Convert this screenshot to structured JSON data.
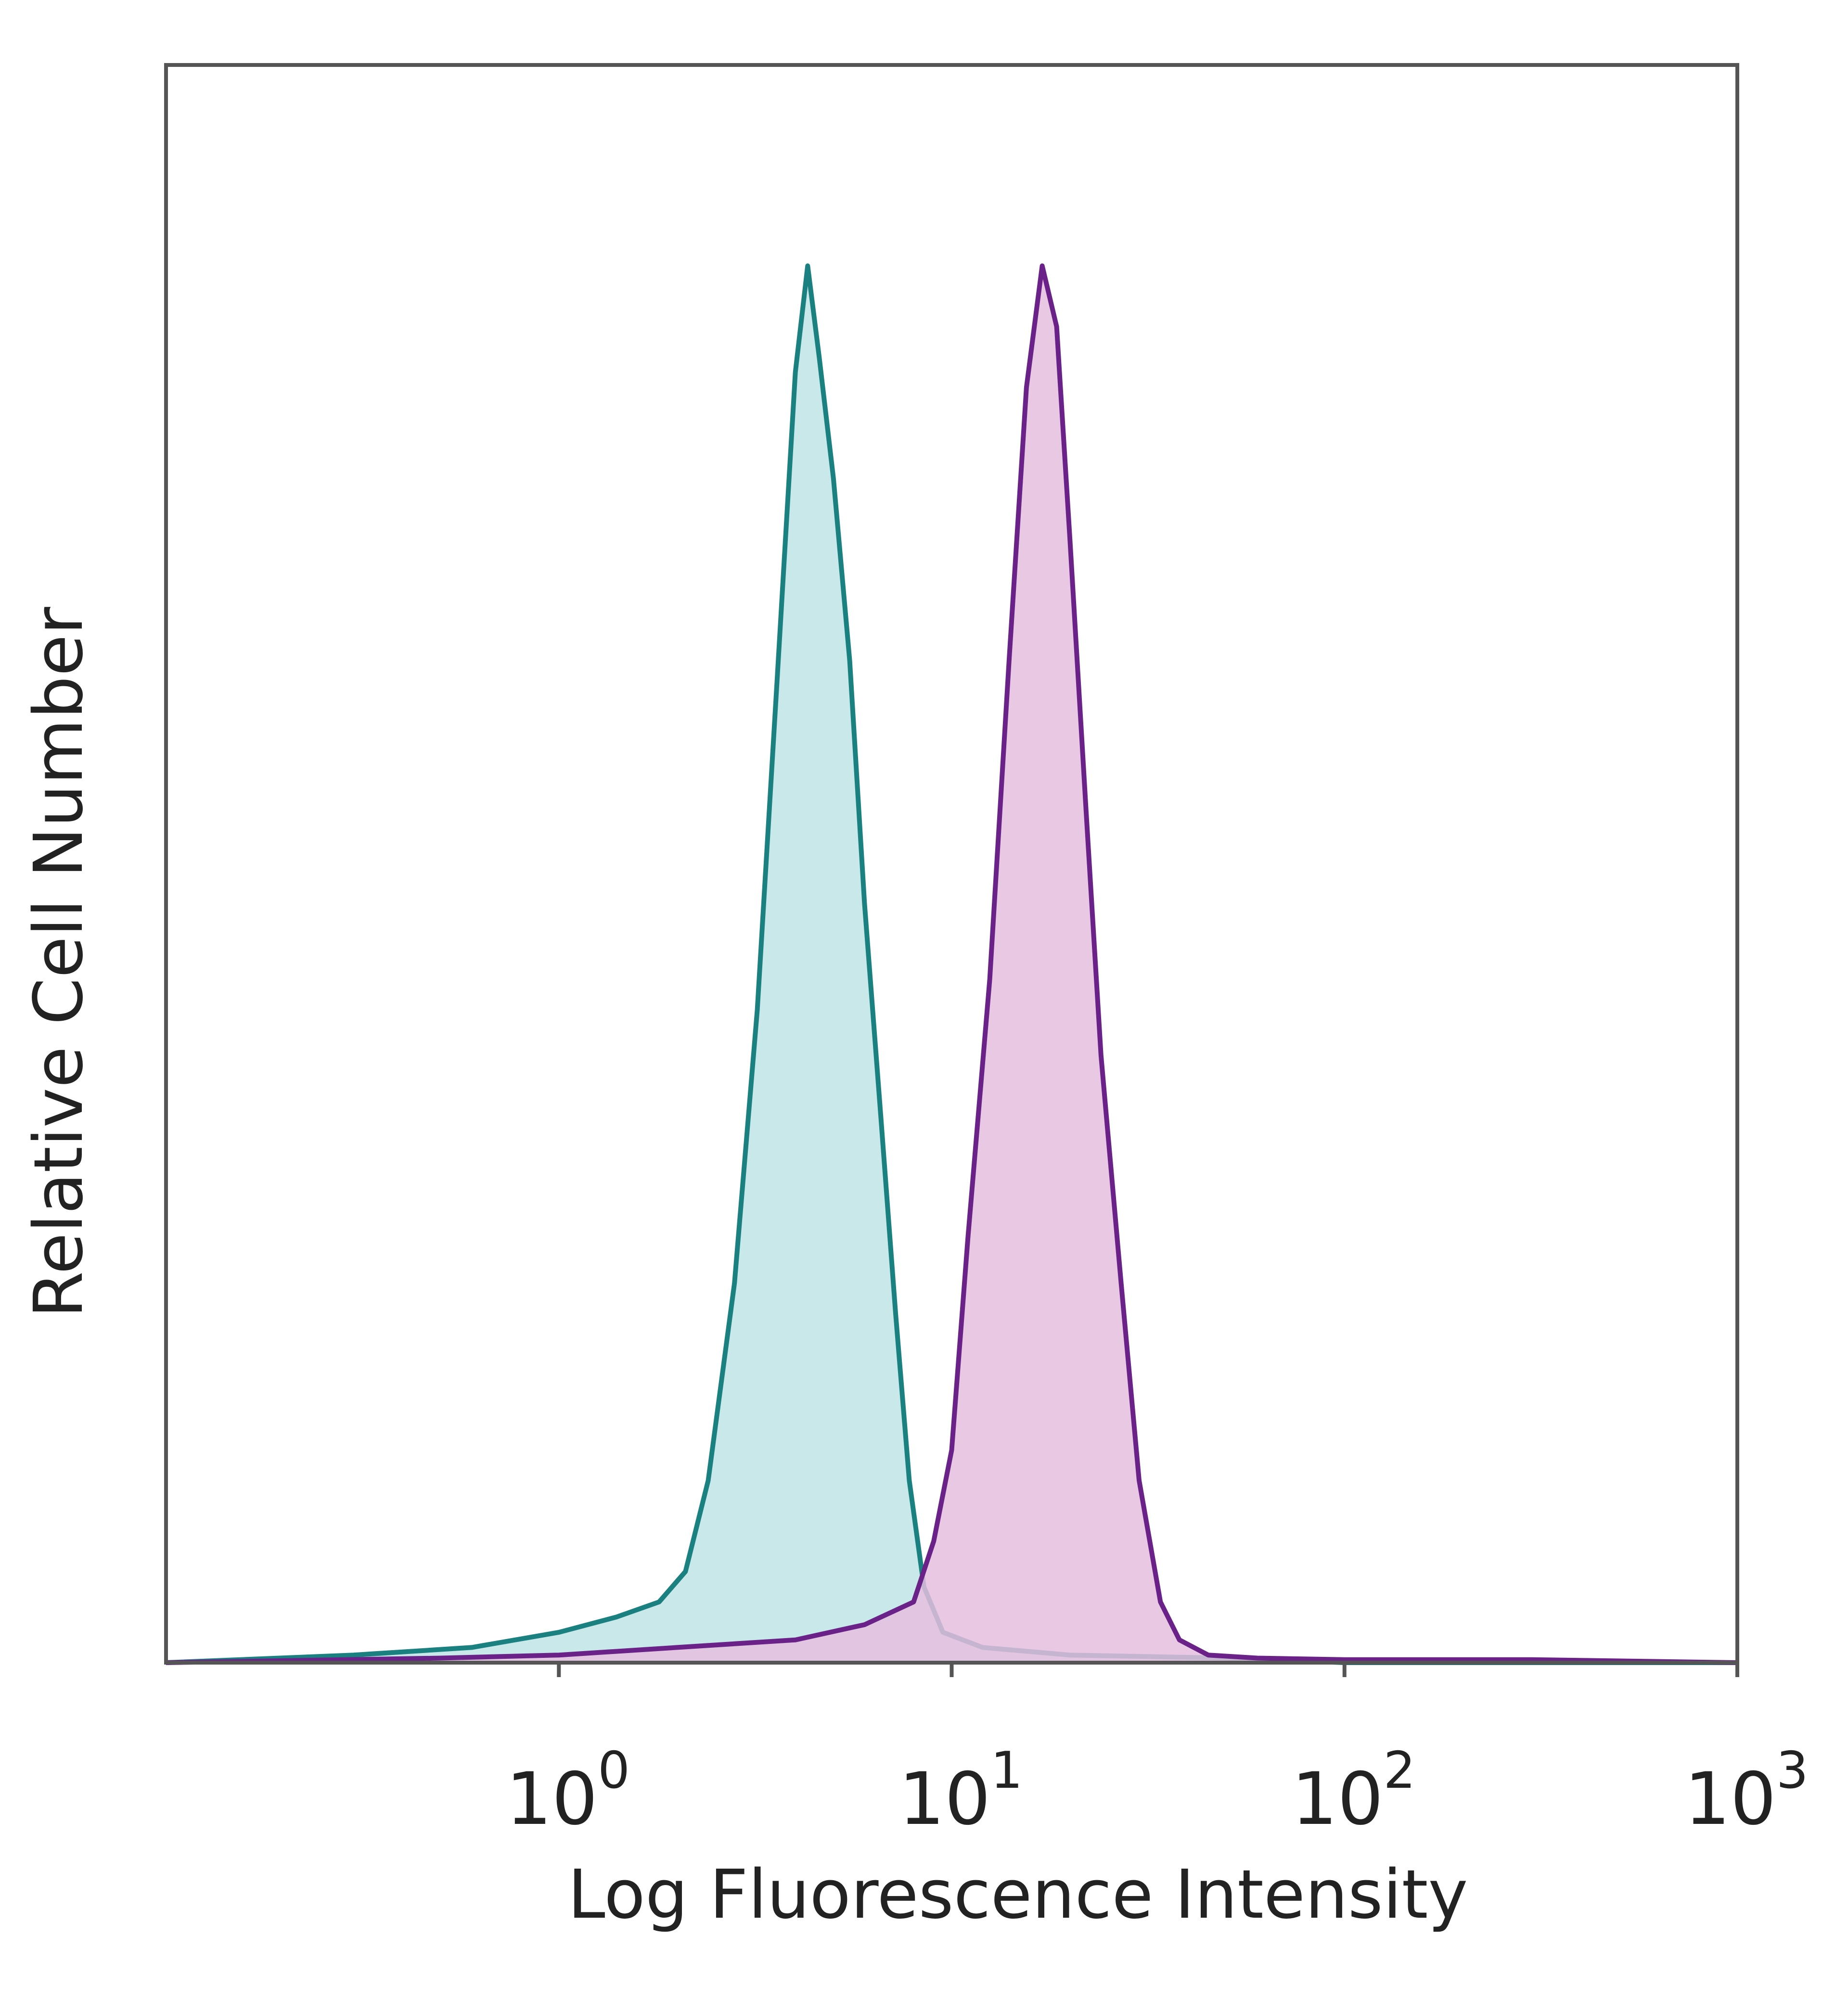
{
  "chart_data": {
    "type": "area",
    "title": "",
    "xlabel": "Log Fluorescence Intensity",
    "ylabel": "Relative Cell Number",
    "x_scale": "log",
    "xlim": [
      0.1,
      1000
    ],
    "ylim": [
      0,
      100
    ],
    "x_ticks": [
      {
        "value": 1,
        "base": "10",
        "exp": "0"
      },
      {
        "value": 10,
        "base": "10",
        "exp": "1"
      },
      {
        "value": 100,
        "base": "10",
        "exp": "2"
      },
      {
        "value": 1000,
        "base": "10",
        "exp": "3"
      }
    ],
    "grid": false,
    "legend": false,
    "series": [
      {
        "color": "#1a8080",
        "fill": "#bfe4e6",
        "x": [
          0.1,
          0.3,
          0.6,
          1.0,
          1.4,
          1.8,
          2.1,
          2.4,
          2.8,
          3.2,
          3.6,
          4.0,
          4.3,
          4.6,
          5.0,
          5.5,
          6.0,
          6.6,
          7.2,
          7.8,
          8.5,
          9.5,
          12,
          20,
          50,
          100,
          300,
          1000
        ],
        "y": [
          0,
          0.5,
          1,
          2,
          3,
          4,
          6,
          12,
          25,
          43,
          65,
          85,
          92,
          86,
          78,
          66,
          50,
          36,
          23,
          12,
          5,
          2,
          1,
          0.5,
          0.3,
          0,
          0,
          0
        ]
      },
      {
        "color": "#6a2288",
        "fill": "#e5bedf",
        "x": [
          0.1,
          0.5,
          1.0,
          2.0,
          4.0,
          6.0,
          8.0,
          9.0,
          10.0,
          11.0,
          12.5,
          14.0,
          15.5,
          17.0,
          18.5,
          20.0,
          22.0,
          24.0,
          27.0,
          30.0,
          34.0,
          38.0,
          45.0,
          60.0,
          100,
          300,
          1000
        ],
        "y": [
          0,
          0.3,
          0.5,
          1,
          1.5,
          2.5,
          4,
          8,
          14,
          28,
          45,
          66,
          84,
          92,
          88,
          74,
          56,
          40,
          25,
          12,
          4,
          1.5,
          0.5,
          0.3,
          0.2,
          0.2,
          0
        ]
      }
    ]
  }
}
